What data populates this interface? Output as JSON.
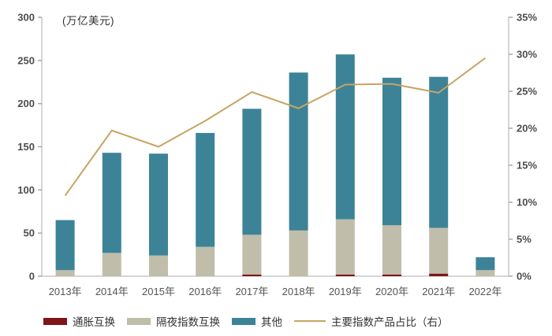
{
  "chart_data": {
    "type": "bar",
    "subtype": "stacked-bars-with-line",
    "unit_label": "(万亿美元)",
    "categories": [
      "2013年",
      "2014年",
      "2015年",
      "2016年",
      "2017年",
      "2018年",
      "2019年",
      "2020年",
      "2021年",
      "2022年"
    ],
    "series": [
      {
        "name": "通胀互换",
        "type": "bar",
        "axis": "left",
        "color": "#7E1518",
        "values": [
          0,
          0,
          0,
          0,
          2,
          0,
          2,
          2,
          3,
          0
        ]
      },
      {
        "name": "隔夜指数互换",
        "type": "bar",
        "axis": "left",
        "color": "#C0BDAB",
        "values": [
          7,
          27,
          24,
          34,
          46,
          53,
          64,
          57,
          53,
          7
        ]
      },
      {
        "name": "其他",
        "type": "bar",
        "axis": "left",
        "color": "#3C8398",
        "values": [
          58,
          116,
          118,
          132,
          146,
          183,
          191,
          171,
          175,
          15
        ]
      },
      {
        "name": "主要指数产品占比（右）",
        "type": "line",
        "axis": "right",
        "color": "#C8A363",
        "values": [
          10.9,
          19.7,
          17.5,
          21.0,
          24.9,
          22.7,
          25.9,
          26.0,
          24.8,
          29.5
        ]
      }
    ],
    "totals_left_axis": [
      65,
      143,
      142,
      166,
      194,
      236,
      257,
      230,
      231,
      22
    ],
    "left_axis": {
      "min": 0,
      "max": 300,
      "step": 50,
      "tick_labels": [
        "0",
        "50",
        "100",
        "150",
        "200",
        "250",
        "300"
      ]
    },
    "right_axis": {
      "min": 0,
      "max": 35,
      "step": 5,
      "tick_labels": [
        "0%",
        "5%",
        "10%",
        "15%",
        "20%",
        "25%",
        "30%",
        "35%"
      ]
    },
    "grid": "off",
    "legend_position": "bottom",
    "colors": {
      "axis_line": "#C9C9C9",
      "tick_mark": "#A8A8A8",
      "tick_text": "#4D4D4D",
      "category_text": "#555555"
    }
  }
}
